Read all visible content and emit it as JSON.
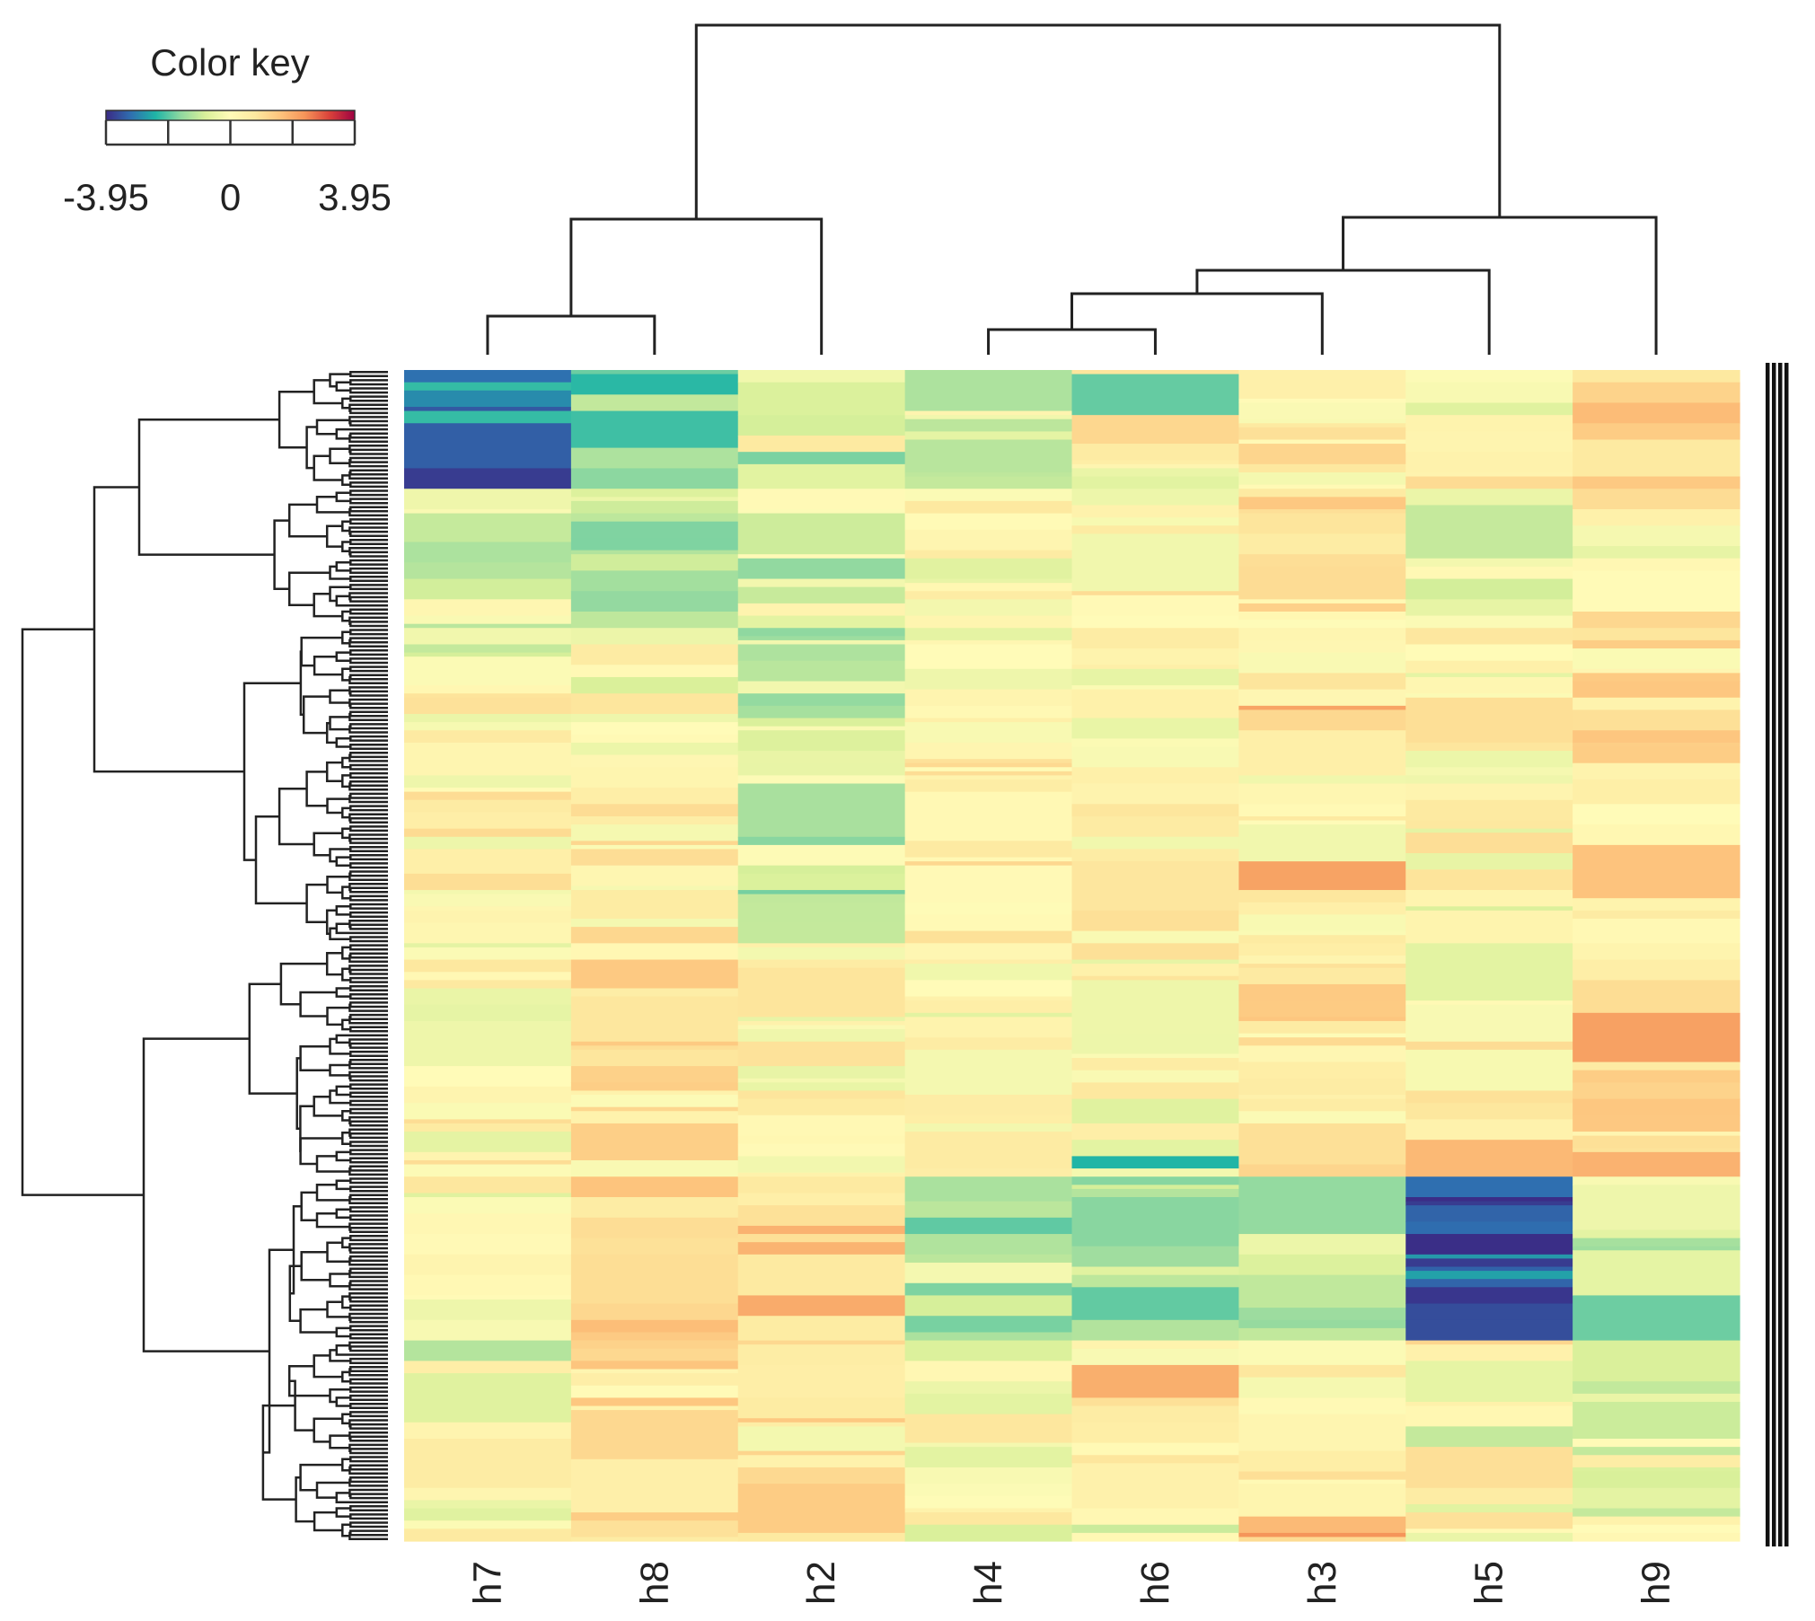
{
  "chart_data": {
    "type": "heatmap",
    "title": "",
    "columns": [
      "h7",
      "h8",
      "h2",
      "h4",
      "h6",
      "h3",
      "h5",
      "h9"
    ],
    "color_key": {
      "title": "Color key",
      "min": -3.95,
      "max": 3.95,
      "tick_labels": [
        "-3.95",
        "0",
        "3.95"
      ],
      "tick_values": [
        -3.95,
        0,
        3.95
      ],
      "palette": [
        "#3b2a85",
        "#2f6fb0",
        "#1fb5a6",
        "#8fd8a0",
        "#d9f09a",
        "#fffbb8",
        "#fde9a0",
        "#fdc47d",
        "#f59459",
        "#d9413a",
        "#9e0142"
      ]
    },
    "row_count": 286,
    "column_dendrogram": "((h7,h8),h2),(((h4,h6),h3),h5),h9)",
    "row_dendrogram_shown": true,
    "row_side_marker": "black bar of row ticks",
    "cluster_profiles": {
      "h7": [
        -3.1,
        -0.6,
        0.2,
        0.2,
        0.2,
        0.2,
        0.2
      ],
      "h8": [
        -1.5,
        -0.8,
        0.3,
        0.7,
        0.9,
        0.9,
        0.8
      ],
      "h2": [
        -1.0,
        -0.3,
        -0.8,
        0.1,
        1.3,
        0.6,
        1.5
      ],
      "h4": [
        -0.4,
        0.2,
        0.3,
        0.3,
        -1.1,
        0.1,
        0.0
      ],
      "h6": [
        0.2,
        0.2,
        0.2,
        0.2,
        -1.2,
        0.1,
        0.2
      ],
      "h3": [
        0.6,
        0.6,
        0.5,
        0.7,
        -0.9,
        0.4,
        0.0
      ],
      "h5": [
        0.2,
        -0.6,
        0.3,
        0.3,
        -3.3,
        0.3,
        -0.7
      ],
      "h9": [
        1.6,
        0.4,
        0.7,
        1.1,
        -1.0,
        -0.2,
        -0.5
      ]
    }
  }
}
